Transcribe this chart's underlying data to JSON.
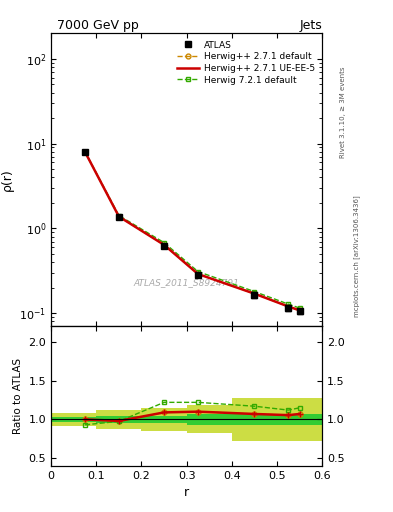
{
  "title": "7000 GeV pp",
  "title_right": "Jets",
  "ylabel_main": "ρ(r)",
  "ylabel_ratio": "Ratio to ATLAS",
  "xlabel": "r",
  "watermark": "ATLAS_2011_S8924791",
  "rivet_label": "Rivet 3.1.10, ≥ 3M events",
  "mcplots_label": "mcplots.cern.ch [arXiv:1306.3436]",
  "r_vals": [
    0.075,
    0.15,
    0.25,
    0.325,
    0.45,
    0.525,
    0.55
  ],
  "atlas_y": [
    8.0,
    1.35,
    0.62,
    0.28,
    0.165,
    0.115,
    0.105
  ],
  "atlas_yerr": [
    0.25,
    0.07,
    0.03,
    0.015,
    0.012,
    0.009,
    0.008
  ],
  "hw271_default_y": [
    8.0,
    1.38,
    0.64,
    0.29,
    0.17,
    0.12,
    0.108
  ],
  "hw271_ueee5_y": [
    8.0,
    1.38,
    0.64,
    0.29,
    0.17,
    0.12,
    0.108
  ],
  "hw721_default_y": [
    8.05,
    1.42,
    0.68,
    0.31,
    0.18,
    0.128,
    0.115
  ],
  "ratio_hw271_default": [
    1.0,
    0.975,
    1.09,
    1.1,
    1.07,
    1.055,
    1.07
  ],
  "ratio_hw271_ueee5": [
    1.0,
    0.98,
    1.09,
    1.1,
    1.07,
    1.055,
    1.07
  ],
  "ratio_hw721_default": [
    0.93,
    0.975,
    1.22,
    1.22,
    1.17,
    1.12,
    1.15
  ],
  "band_edges": [
    0.0,
    0.1,
    0.2,
    0.3,
    0.4,
    0.5,
    0.6
  ],
  "band_inner_lo": [
    0.97,
    0.95,
    0.95,
    0.93,
    0.93,
    0.93
  ],
  "band_inner_hi": [
    1.03,
    1.05,
    1.05,
    1.07,
    1.07,
    1.07
  ],
  "band_outer_lo": [
    0.92,
    0.88,
    0.85,
    0.82,
    0.72,
    0.72
  ],
  "band_outer_hi": [
    1.08,
    1.12,
    1.15,
    1.18,
    1.28,
    1.28
  ],
  "color_atlas": "#000000",
  "color_hw271_default": "#cc8800",
  "color_hw271_ueee5": "#cc0000",
  "color_hw721_default": "#33aa00",
  "color_band_inner": "#33cc33",
  "color_band_outer": "#ccdd44",
  "xlim": [
    0.0,
    0.6
  ],
  "ylim_main": [
    0.07,
    200
  ],
  "ylim_ratio": [
    0.4,
    2.2
  ],
  "ratio_yticks": [
    0.5,
    1.0,
    1.5,
    2.0
  ],
  "main_yticks": [
    0.1,
    1.0,
    10.0,
    100.0
  ],
  "main_ytick_labels": [
    "$10^{-1}$",
    "$10^{0}$",
    "$10^{1}$",
    "$10^{2}$"
  ],
  "background_color": "#ffffff"
}
